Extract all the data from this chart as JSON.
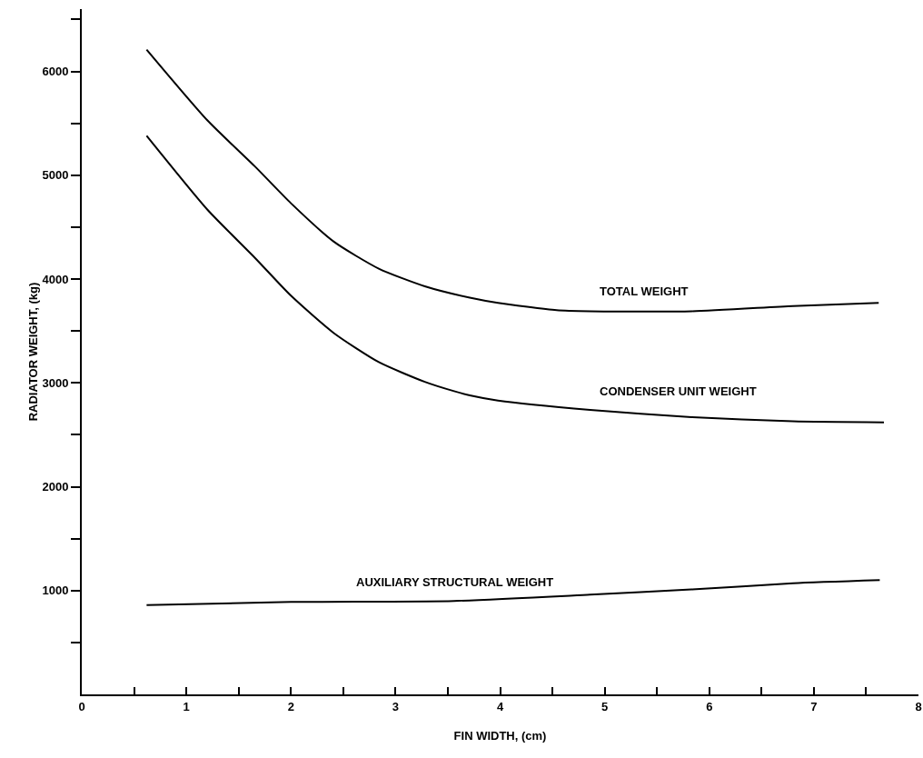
{
  "chart_data": {
    "type": "line",
    "xlabel": "FIN WIDTH, (cm)",
    "ylabel": "RADIATOR WEIGHT, (kg)",
    "xlim": [
      0,
      8
    ],
    "ylim": [
      0,
      6600
    ],
    "xticks": [
      0,
      {
        "value": 0.5,
        "label": null
      },
      1,
      {
        "value": 1.5,
        "label": null
      },
      2,
      {
        "value": 2.5,
        "label": null
      },
      3,
      {
        "value": 3.5,
        "label": null
      },
      4,
      {
        "value": 4.5,
        "label": null
      },
      5,
      {
        "value": 5.5,
        "label": null
      },
      6,
      {
        "value": 6.5,
        "label": null
      },
      7,
      {
        "value": 7.5,
        "label": null
      },
      8
    ],
    "yticks": [
      {
        "value": 500,
        "label": null
      },
      1000,
      {
        "value": 1500,
        "label": null
      },
      2000,
      {
        "value": 2500,
        "label": null
      },
      3000,
      {
        "value": 3500,
        "label": null
      },
      4000,
      {
        "value": 4500,
        "label": null
      },
      5000,
      {
        "value": 5500,
        "label": null
      },
      6000,
      {
        "value": 6500,
        "label": null
      }
    ],
    "grid": false,
    "legend": false,
    "marker": "none",
    "line_style": "solid",
    "series": [
      {
        "name": "TOTAL WEIGHT",
        "color": "#000000",
        "x": [
          0.62,
          1.2,
          1.66,
          2.0,
          2.41,
          2.84,
          3.28,
          3.71,
          3.98,
          4.54,
          4.86,
          5.83,
          6.8,
          7.62
        ],
        "values": [
          6210,
          5530,
          5080,
          4730,
          4360,
          4100,
          3930,
          3820,
          3770,
          3700,
          3690,
          3690,
          3740,
          3770
        ]
      },
      {
        "name": "CONDENSER UNIT WEIGHT",
        "color": "#000000",
        "x": [
          0.62,
          1.2,
          1.66,
          2.0,
          2.41,
          2.84,
          3.28,
          3.56,
          3.71,
          3.98,
          4.86,
          5.83,
          6.8,
          7.67
        ],
        "values": [
          5380,
          4670,
          4200,
          3840,
          3480,
          3200,
          3010,
          2920,
          2880,
          2830,
          2740,
          2670,
          2630,
          2620
        ]
      },
      {
        "name": "AUXILIARY STRUCTURAL WEIGHT",
        "color": "#000000",
        "x": [
          0.62,
          2.0,
          3.56,
          4.86,
          5.83,
          6.8,
          7.63
        ],
        "values": [
          860,
          890,
          900,
          960,
          1010,
          1070,
          1100
        ]
      }
    ]
  }
}
